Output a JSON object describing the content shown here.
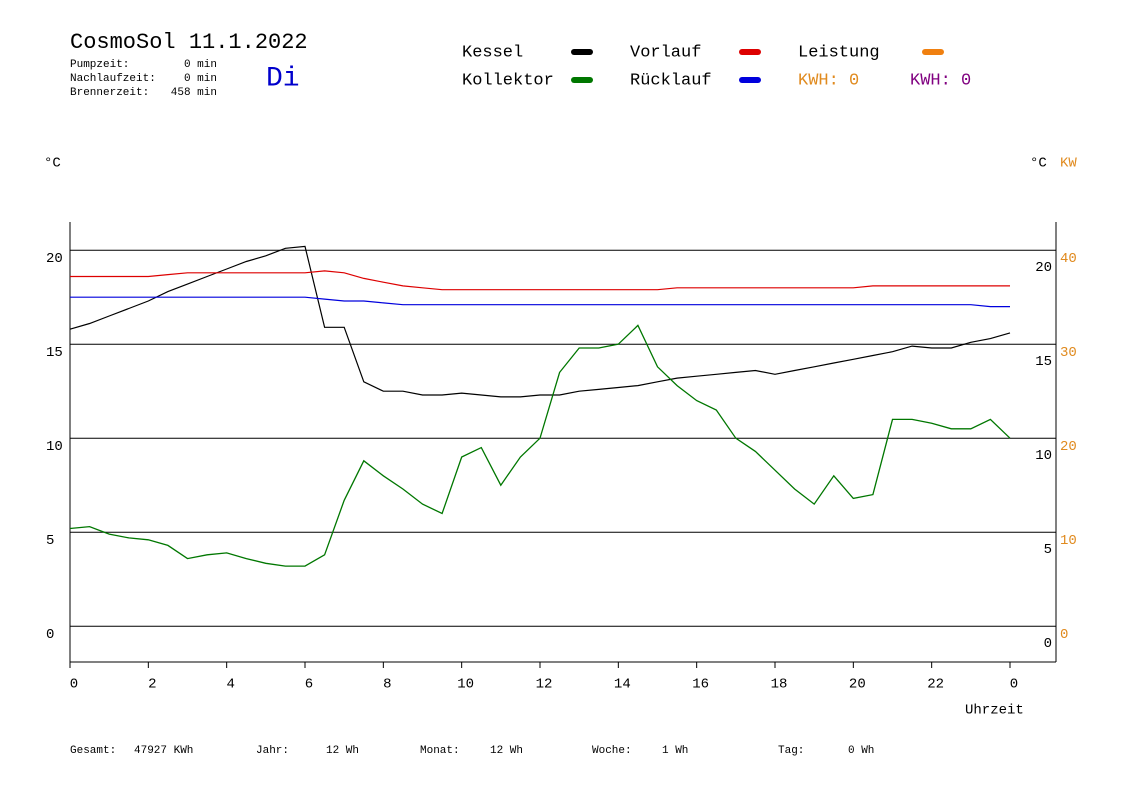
{
  "chart_data": {
    "type": "line",
    "title": "CosmoSol 11.1.2022",
    "info": [
      {
        "label": "Pumpzeit:",
        "value": "0 min"
      },
      {
        "label": "Nachlaufzeit:",
        "value": "0 min"
      },
      {
        "label": "Brennerzeit:",
        "value": "458 min"
      }
    ],
    "day": "Di",
    "y_label": "°C",
    "y_label_right": "°C",
    "y2_label": "KW",
    "x_label": "Uhrzeit",
    "x": [
      0,
      0.5,
      1,
      1.5,
      2,
      2.5,
      3,
      3.5,
      4,
      4.5,
      5,
      5.5,
      6,
      6.5,
      7,
      7.5,
      8,
      8.5,
      9,
      9.5,
      10,
      10.5,
      11,
      11.5,
      12,
      12.5,
      13,
      13.5,
      14,
      14.5,
      15,
      15.5,
      16,
      16.5,
      17,
      17.5,
      18,
      18.5,
      19,
      19.5,
      20,
      20.5,
      21,
      21.5,
      22,
      22.5,
      23,
      23.5,
      24
    ],
    "xlim": [
      0,
      24
    ],
    "xticks": [
      0,
      2,
      4,
      6,
      8,
      10,
      12,
      14,
      16,
      18,
      20,
      22,
      {
        "value": 24,
        "label": "0"
      }
    ],
    "ylim": [
      -1.9,
      21.5
    ],
    "yticks": [
      0,
      5,
      10,
      15,
      20
    ],
    "y2lim": [
      -3.8,
      43
    ],
    "y2ticks": [
      0,
      10,
      20,
      30,
      40
    ],
    "y2_color": "#e08a1e",
    "grid": true,
    "series": [
      {
        "name": "Kessel",
        "color": "#000000",
        "values": [
          15.8,
          16.1,
          16.5,
          16.9,
          17.3,
          17.8,
          18.2,
          18.6,
          19.0,
          19.4,
          19.7,
          20.1,
          20.2,
          15.9,
          15.9,
          13.0,
          12.5,
          12.5,
          12.3,
          12.3,
          12.4,
          12.3,
          12.2,
          12.2,
          12.3,
          12.3,
          12.5,
          12.6,
          12.7,
          12.8,
          13.0,
          13.2,
          13.3,
          13.4,
          13.5,
          13.6,
          13.4,
          13.6,
          13.8,
          14.0,
          14.2,
          14.4,
          14.6,
          14.9,
          14.8,
          14.8,
          15.1,
          15.3,
          15.6
        ]
      },
      {
        "name": "Vorlauf",
        "color": "#dd0000",
        "values": [
          18.6,
          18.6,
          18.6,
          18.6,
          18.6,
          18.7,
          18.8,
          18.8,
          18.8,
          18.8,
          18.8,
          18.8,
          18.8,
          18.9,
          18.8,
          18.5,
          18.3,
          18.1,
          18.0,
          17.9,
          17.9,
          17.9,
          17.9,
          17.9,
          17.9,
          17.9,
          17.9,
          17.9,
          17.9,
          17.9,
          17.9,
          18.0,
          18.0,
          18.0,
          18.0,
          18.0,
          18.0,
          18.0,
          18.0,
          18.0,
          18.0,
          18.1,
          18.1,
          18.1,
          18.1,
          18.1,
          18.1,
          18.1,
          18.1
        ]
      },
      {
        "name": "Kollektor",
        "color": "#007700",
        "values": [
          5.2,
          5.3,
          4.9,
          4.7,
          4.6,
          4.3,
          3.6,
          3.8,
          3.9,
          3.6,
          3.35,
          3.2,
          3.2,
          3.8,
          6.7,
          8.8,
          8.0,
          7.3,
          6.5,
          6.0,
          9.0,
          9.5,
          7.5,
          9.0,
          10.0,
          13.5,
          14.8,
          14.8,
          15.0,
          16.0,
          13.8,
          12.8,
          12.0,
          11.5,
          10.0,
          9.3,
          8.3,
          7.3,
          6.5,
          8.0,
          6.8,
          7.0,
          11.0,
          11.0,
          10.8,
          10.5,
          10.5,
          11.0,
          10.0
        ]
      },
      {
        "name": "Rücklauf",
        "color": "#0000dd",
        "values": [
          17.5,
          17.5,
          17.5,
          17.5,
          17.5,
          17.5,
          17.5,
          17.5,
          17.5,
          17.5,
          17.5,
          17.5,
          17.5,
          17.4,
          17.3,
          17.3,
          17.2,
          17.1,
          17.1,
          17.1,
          17.1,
          17.1,
          17.1,
          17.1,
          17.1,
          17.1,
          17.1,
          17.1,
          17.1,
          17.1,
          17.1,
          17.1,
          17.1,
          17.1,
          17.1,
          17.1,
          17.1,
          17.1,
          17.1,
          17.1,
          17.1,
          17.1,
          17.1,
          17.1,
          17.1,
          17.1,
          17.1,
          17.0,
          17.0
        ]
      }
    ],
    "legend_extra": {
      "name": "Leistung",
      "color": "#f08010"
    },
    "kwh": [
      {
        "text": "KWH: 0",
        "color": "#e08a1e"
      },
      {
        "text": "KWH: 0",
        "color": "#800080"
      }
    ],
    "footer": [
      {
        "label": "Gesamt:",
        "value": "47927 KWh"
      },
      {
        "label": "Jahr:",
        "value": "12 Wh"
      },
      {
        "label": "Monat:",
        "value": "12 Wh"
      },
      {
        "label": "Woche:",
        "value": "1 Wh"
      },
      {
        "label": "Tag:",
        "value": "0 Wh"
      }
    ]
  }
}
